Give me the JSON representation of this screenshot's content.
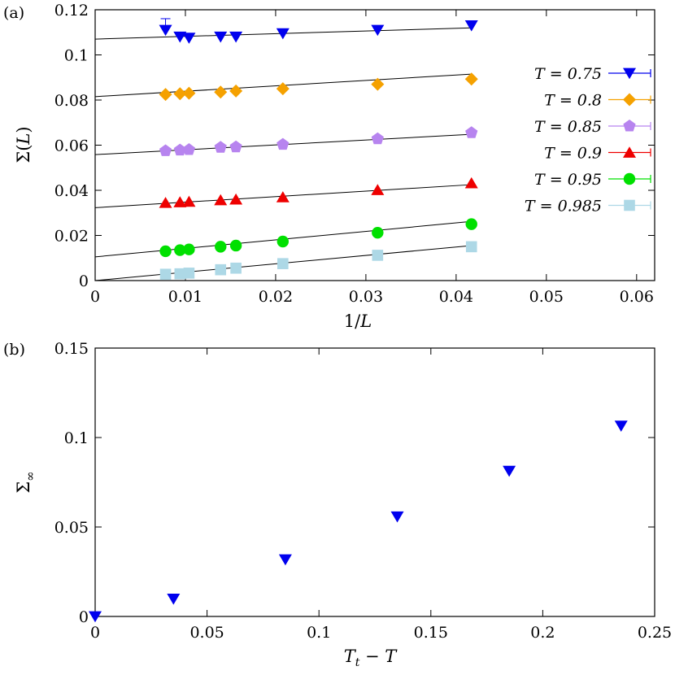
{
  "chart_data": [
    {
      "panel_label": "(a)",
      "type": "scatter",
      "xlabel": "1/L",
      "ylabel": "Σ(L)",
      "xlim": [
        0,
        0.062
      ],
      "ylim": [
        0,
        0.12
      ],
      "xticks": [
        0,
        0.01,
        0.02,
        0.03,
        0.04,
        0.05,
        0.06
      ],
      "yticks": [
        0,
        0.02,
        0.04,
        0.06,
        0.08,
        0.1,
        0.12
      ],
      "xtick_labels": [
        "0",
        "0.01",
        "0.02",
        "0.03",
        "0.04",
        "0.05",
        "0.06"
      ],
      "ytick_labels": [
        "0",
        "0.02",
        "0.04",
        "0.06",
        "0.08",
        "0.1",
        "0.12"
      ],
      "grid": false,
      "legend_position": "right",
      "x": [
        0.0078,
        0.0094,
        0.0104,
        0.0139,
        0.0156,
        0.0208,
        0.0313,
        0.0417
      ],
      "series": [
        {
          "name": "T = 0.75",
          "color": "#0000ee",
          "marker": "triangle-down",
          "values": [
            0.111,
            0.108,
            0.1075,
            0.108,
            0.108,
            0.1095,
            0.111,
            0.113
          ],
          "fit": [
            0.107,
            0.112
          ]
        },
        {
          "name": "T = 0.8",
          "color": "#f5a100",
          "marker": "diamond",
          "values": [
            0.0825,
            0.0828,
            0.083,
            0.0835,
            0.084,
            0.085,
            0.087,
            0.0893
          ],
          "fit": [
            0.0815,
            0.0915
          ]
        },
        {
          "name": "T = 0.85",
          "color": "#b784ef",
          "marker": "pentagon",
          "values": [
            0.0575,
            0.0578,
            0.058,
            0.059,
            0.0592,
            0.0603,
            0.0628,
            0.0655
          ],
          "fit": [
            0.0558,
            0.0648
          ]
        },
        {
          "name": "T = 0.9",
          "color": "#ee0000",
          "marker": "triangle-up",
          "values": [
            0.0345,
            0.0348,
            0.035,
            0.0357,
            0.036,
            0.037,
            0.0402,
            0.0432
          ],
          "fit": [
            0.0323,
            0.0425
          ]
        },
        {
          "name": "T = 0.95",
          "color": "#00e000",
          "marker": "circle",
          "values": [
            0.013,
            0.0135,
            0.0138,
            0.015,
            0.0155,
            0.0173,
            0.0212,
            0.025
          ],
          "fit": [
            0.0105,
            0.0262
          ]
        },
        {
          "name": "T = 0.985",
          "color": "#add8e6",
          "marker": "square",
          "values": [
            0.0028,
            0.003,
            0.0033,
            0.0048,
            0.0055,
            0.0075,
            0.0112,
            0.015
          ],
          "fit": [
            0.0,
            0.0155
          ]
        }
      ]
    },
    {
      "panel_label": "(b)",
      "type": "scatter",
      "xlabel": "T_t − T",
      "ylabel": "Σ∞",
      "xlim": [
        0,
        0.25
      ],
      "ylim": [
        0,
        0.15
      ],
      "xticks": [
        0,
        0.05,
        0.1,
        0.15,
        0.2,
        0.25
      ],
      "yticks": [
        0,
        0.05,
        0.1,
        0.15
      ],
      "xtick_labels": [
        "0",
        "0.05",
        "0.1",
        "0.15",
        "0.2",
        "0.25"
      ],
      "ytick_labels": [
        "0",
        "0.05",
        "0.1",
        "0.15"
      ],
      "grid": false,
      "series": [
        {
          "color": "#0000ee",
          "marker": "triangle-down",
          "x": [
            0,
            0.035,
            0.085,
            0.135,
            0.185,
            0.235
          ],
          "values": [
            0.0,
            0.0098,
            0.0318,
            0.0558,
            0.0813,
            0.1065
          ]
        }
      ]
    }
  ]
}
